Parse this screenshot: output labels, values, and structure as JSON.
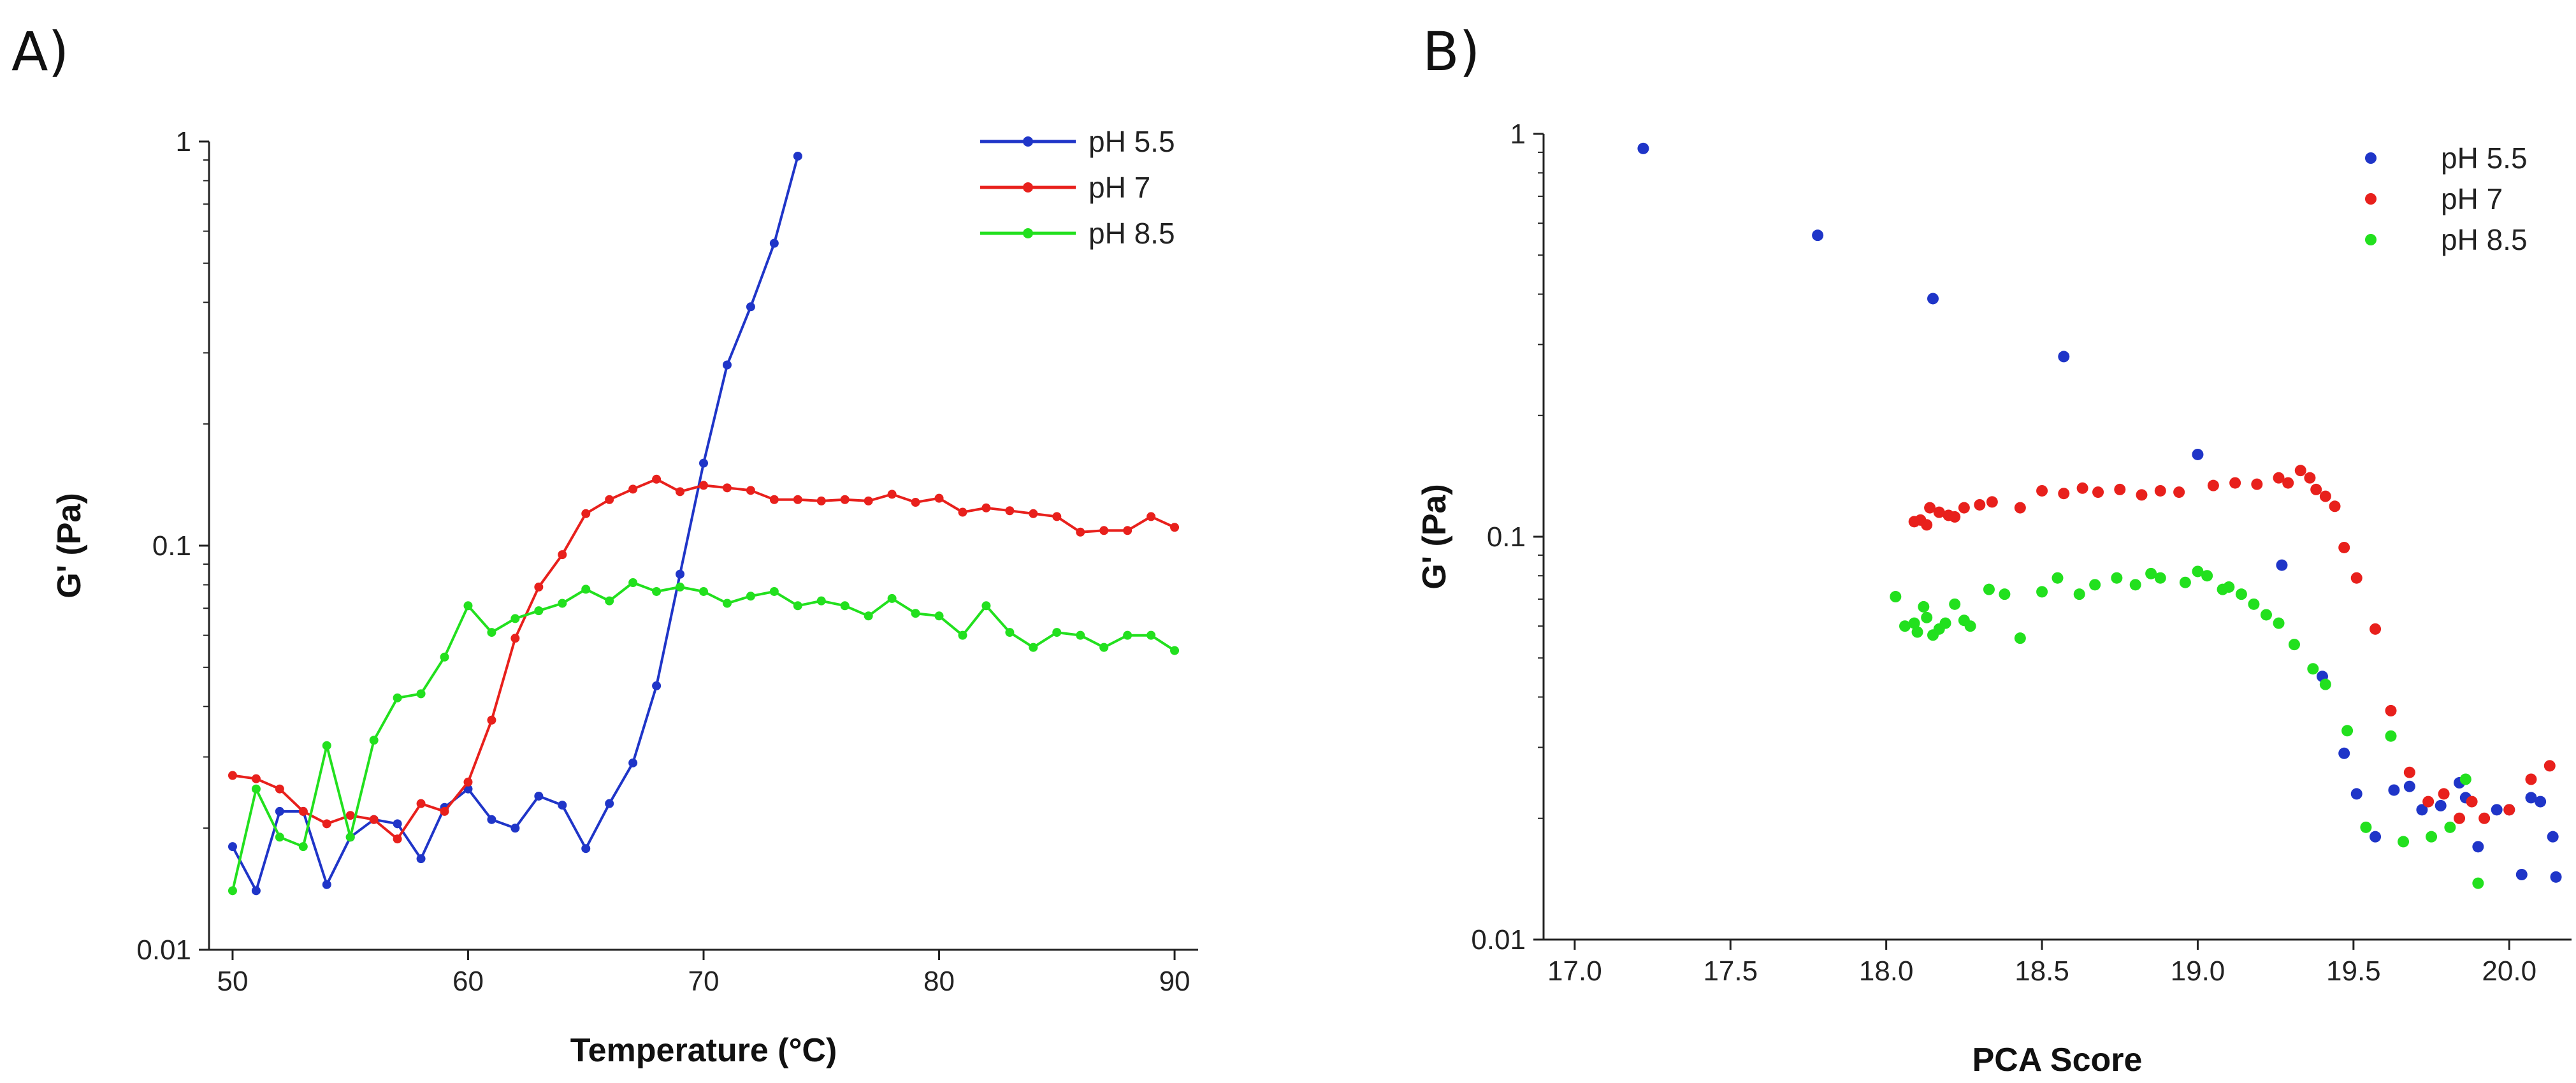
{
  "figure": {
    "panel_a_label": "A)",
    "panel_b_label": "B)"
  },
  "chart_data": [
    {
      "type": "line",
      "panel": "A",
      "title": "",
      "xlabel": "Temperature (°C)",
      "ylabel": "G' (Pa)",
      "xlim": [
        49,
        91
      ],
      "ylim": [
        0.01,
        1
      ],
      "yscale": "log",
      "xticks": [
        50,
        60,
        70,
        80,
        90
      ],
      "xtick_labels": [
        "50",
        "60",
        "70",
        "80",
        "90"
      ],
      "yticks": [
        0.01,
        0.1,
        1
      ],
      "ytick_labels": [
        "0.01",
        "0.1",
        "1"
      ],
      "legend_position": "top-right",
      "series": [
        {
          "name": "pH 5.5",
          "color": "#1f35c8",
          "x": [
            50,
            51,
            52,
            53,
            54,
            55,
            56,
            57,
            58,
            59,
            60,
            61,
            62,
            63,
            64,
            65,
            66,
            67,
            68,
            69,
            70,
            71,
            72,
            73,
            74
          ],
          "y": [
            0.018,
            0.014,
            0.022,
            0.022,
            0.0145,
            0.019,
            0.021,
            0.0205,
            0.0168,
            0.0225,
            0.025,
            0.021,
            0.02,
            0.024,
            0.0228,
            0.0178,
            0.023,
            0.029,
            0.045,
            0.085,
            0.16,
            0.28,
            0.39,
            0.56,
            0.92
          ]
        },
        {
          "name": "pH 7",
          "color": "#e8201c",
          "x": [
            50,
            51,
            52,
            53,
            54,
            55,
            56,
            57,
            58,
            59,
            60,
            61,
            62,
            63,
            64,
            65,
            66,
            67,
            68,
            69,
            70,
            71,
            72,
            73,
            74,
            75,
            76,
            77,
            78,
            79,
            80,
            81,
            82,
            83,
            84,
            85,
            86,
            87,
            88,
            89,
            90
          ],
          "y": [
            0.027,
            0.0265,
            0.025,
            0.022,
            0.0205,
            0.0215,
            0.021,
            0.0188,
            0.023,
            0.022,
            0.026,
            0.037,
            0.059,
            0.079,
            0.095,
            0.12,
            0.13,
            0.138,
            0.146,
            0.136,
            0.141,
            0.139,
            0.137,
            0.13,
            0.13,
            0.129,
            0.13,
            0.129,
            0.134,
            0.128,
            0.131,
            0.121,
            0.124,
            0.122,
            0.12,
            0.118,
            0.108,
            0.109,
            0.109,
            0.118,
            0.111
          ]
        },
        {
          "name": "pH 8.5",
          "color": "#22e01e",
          "x": [
            50,
            51,
            52,
            53,
            54,
            55,
            56,
            57,
            58,
            59,
            60,
            61,
            62,
            63,
            64,
            65,
            66,
            67,
            68,
            69,
            70,
            71,
            72,
            73,
            74,
            75,
            76,
            77,
            78,
            79,
            80,
            81,
            82,
            83,
            84,
            85,
            86,
            87,
            88,
            89,
            90
          ],
          "y": [
            0.014,
            0.025,
            0.019,
            0.018,
            0.032,
            0.019,
            0.033,
            0.042,
            0.043,
            0.053,
            0.071,
            0.061,
            0.066,
            0.069,
            0.072,
            0.078,
            0.073,
            0.081,
            0.077,
            0.079,
            0.077,
            0.072,
            0.075,
            0.077,
            0.071,
            0.073,
            0.071,
            0.067,
            0.074,
            0.068,
            0.067,
            0.06,
            0.071,
            0.061,
            0.056,
            0.061,
            0.06,
            0.056,
            0.06,
            0.06,
            0.055
          ]
        }
      ]
    },
    {
      "type": "scatter",
      "panel": "B",
      "title": "",
      "xlabel": "PCA Score",
      "ylabel": "G' (Pa)",
      "xlim": [
        16.9,
        20.2
      ],
      "ylim": [
        0.01,
        1
      ],
      "yscale": "log",
      "xticks": [
        17.0,
        17.5,
        18.0,
        18.5,
        19.0,
        19.5,
        20.0
      ],
      "xtick_labels": [
        "17.0",
        "17.5",
        "18.0",
        "18.5",
        "19.0",
        "19.5",
        "20.0"
      ],
      "yticks": [
        0.01,
        0.1,
        1
      ],
      "ytick_labels": [
        "0.01",
        "0.1",
        "1"
      ],
      "legend_position": "top-right",
      "series": [
        {
          "name": "pH 5.5",
          "color": "#1f35c8",
          "x": [
            17.22,
            17.78,
            18.15,
            18.57,
            19.0,
            19.27,
            19.4,
            19.47,
            19.51,
            19.57,
            19.63,
            19.68,
            19.72,
            19.78,
            19.84,
            19.86,
            19.9,
            19.96,
            20.0,
            20.04,
            20.07,
            20.1,
            20.14,
            20.15
          ],
          "y": [
            0.92,
            0.56,
            0.39,
            0.28,
            0.16,
            0.085,
            0.045,
            0.029,
            0.023,
            0.018,
            0.0235,
            0.024,
            0.021,
            0.0215,
            0.0245,
            0.0225,
            0.017,
            0.021,
            0.021,
            0.0145,
            0.0225,
            0.022,
            0.018,
            0.0143
          ]
        },
        {
          "name": "pH 7",
          "color": "#e8201c",
          "x": [
            18.09,
            18.11,
            18.13,
            18.14,
            18.17,
            18.2,
            18.22,
            18.25,
            18.3,
            18.34,
            18.43,
            18.5,
            18.57,
            18.63,
            18.68,
            18.75,
            18.82,
            18.88,
            18.94,
            19.05,
            19.12,
            19.19,
            19.26,
            19.29,
            19.33,
            19.36,
            19.38,
            19.41,
            19.44,
            19.47,
            19.51,
            19.57,
            19.62,
            19.68,
            19.74,
            19.79,
            19.84,
            19.88,
            19.92,
            20.0,
            20.07,
            20.13
          ],
          "y": [
            0.109,
            0.11,
            0.107,
            0.118,
            0.115,
            0.113,
            0.112,
            0.118,
            0.12,
            0.122,
            0.118,
            0.13,
            0.128,
            0.132,
            0.129,
            0.131,
            0.127,
            0.13,
            0.129,
            0.134,
            0.136,
            0.135,
            0.14,
            0.136,
            0.146,
            0.14,
            0.131,
            0.126,
            0.119,
            0.094,
            0.079,
            0.059,
            0.037,
            0.026,
            0.022,
            0.023,
            0.02,
            0.022,
            0.02,
            0.021,
            0.025,
            0.027
          ]
        },
        {
          "name": "pH 8.5",
          "color": "#22e01e",
          "x": [
            18.03,
            18.06,
            18.09,
            18.1,
            18.12,
            18.13,
            18.15,
            18.17,
            18.19,
            18.22,
            18.25,
            18.27,
            18.33,
            18.38,
            18.43,
            18.5,
            18.55,
            18.62,
            18.67,
            18.74,
            18.8,
            18.85,
            18.88,
            18.96,
            19.0,
            19.03,
            19.08,
            19.1,
            19.14,
            19.18,
            19.22,
            19.26,
            19.31,
            19.37,
            19.41,
            19.48,
            19.54,
            19.62,
            19.66,
            19.75,
            19.81,
            19.86,
            19.9
          ],
          "y": [
            0.071,
            0.06,
            0.061,
            0.058,
            0.067,
            0.063,
            0.057,
            0.059,
            0.061,
            0.068,
            0.062,
            0.06,
            0.074,
            0.072,
            0.056,
            0.073,
            0.079,
            0.072,
            0.076,
            0.079,
            0.076,
            0.081,
            0.079,
            0.077,
            0.082,
            0.08,
            0.074,
            0.075,
            0.072,
            0.068,
            0.064,
            0.061,
            0.054,
            0.047,
            0.043,
            0.033,
            0.019,
            0.032,
            0.0175,
            0.018,
            0.019,
            0.025,
            0.0138
          ]
        }
      ]
    }
  ]
}
